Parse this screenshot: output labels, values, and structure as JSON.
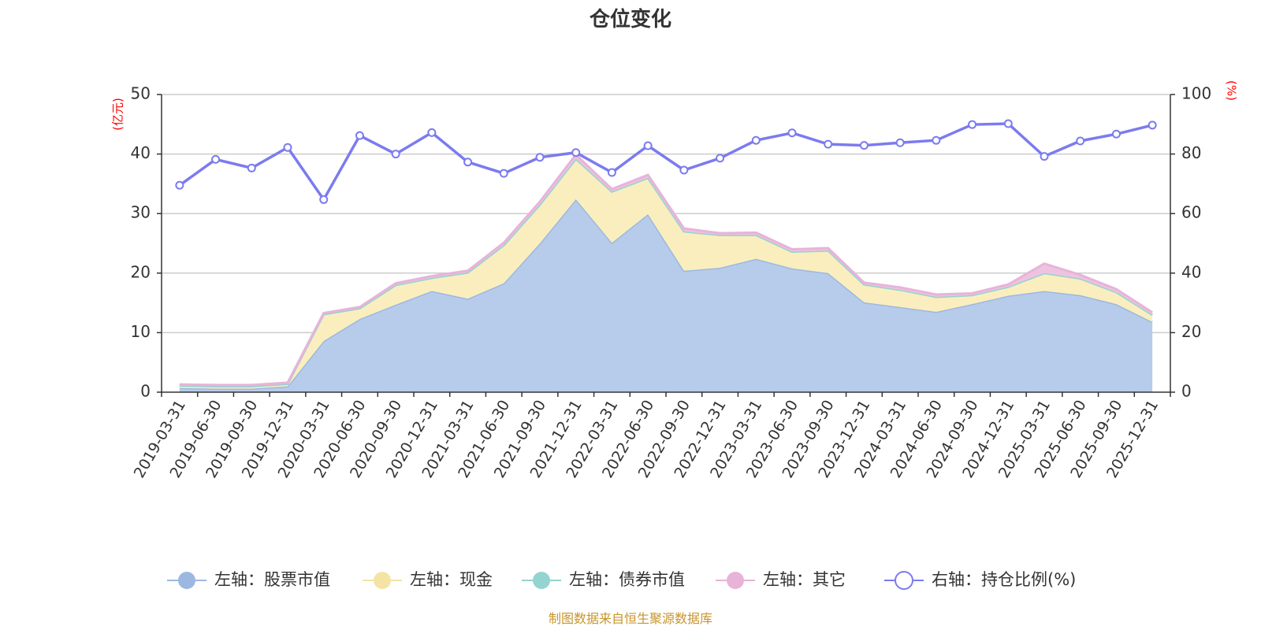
{
  "chart_data": {
    "type": "area+line",
    "title": "仓位变化",
    "left_unit": "(亿元)",
    "right_unit": "(%)",
    "left_ylim": [
      0,
      50
    ],
    "right_ylim": [
      0,
      100
    ],
    "left_ticks": [
      0,
      10,
      20,
      30,
      40,
      50
    ],
    "right_ticks": [
      0,
      20,
      40,
      60,
      80,
      100
    ],
    "categories": [
      "2019-03-31",
      "2019-06-30",
      "2019-09-30",
      "2019-12-31",
      "2020-03-31",
      "2020-06-30",
      "2020-09-30",
      "2020-12-31",
      "2021-03-31",
      "2021-06-30",
      "2021-09-30",
      "2021-12-31",
      "2022-03-31",
      "2022-06-30",
      "2022-09-30",
      "2022-12-31",
      "2023-03-31",
      "2023-06-30",
      "2023-09-30",
      "2023-12-31",
      "2024-03-31",
      "2024-06-30",
      "2024-09-30",
      "2024-12-31",
      "2025-03-31",
      "2025-06-30",
      "2025-09-30",
      "2025-12-31"
    ],
    "series": [
      {
        "name": "左轴：股票市值",
        "axis": "left",
        "color": "#9db8e0",
        "fill": "#b7cceb",
        "values": [
          0.7,
          0.6,
          0.6,
          1.0,
          8.6,
          12.3,
          14.7,
          17.0,
          15.7,
          18.3,
          25.0,
          32.4,
          25.1,
          29.9,
          20.4,
          20.9,
          22.4,
          20.8,
          20.0,
          15.1,
          14.3,
          13.5,
          14.8,
          16.2,
          17.0,
          16.3,
          14.8,
          11.8
        ]
      },
      {
        "name": "左轴：现金",
        "axis": "left",
        "color": "#f3e4a6",
        "fill": "#faeebf",
        "values": [
          0.4,
          0.4,
          0.4,
          0.4,
          4.5,
          1.8,
          3.3,
          2.2,
          4.4,
          6.4,
          6.5,
          6.8,
          8.6,
          6.1,
          6.6,
          5.5,
          4.0,
          2.8,
          3.8,
          3.0,
          2.9,
          2.5,
          1.5,
          1.5,
          3.0,
          2.8,
          2.0,
          1.2
        ]
      },
      {
        "name": "左轴：债券市值",
        "axis": "left",
        "color": "#93d4d0",
        "fill": "#a9ddd9",
        "values": [
          0,
          0,
          0,
          0,
          0,
          0,
          0,
          0,
          0,
          0,
          0,
          0,
          0,
          0,
          0,
          0,
          0,
          0,
          0,
          0,
          0,
          0,
          0,
          0,
          0,
          0,
          0,
          0
        ]
      },
      {
        "name": "左轴：其它",
        "axis": "left",
        "color": "#e8b3d9",
        "fill": "#eec3e0",
        "values": [
          0.2,
          0.2,
          0.2,
          0.2,
          0.2,
          0.2,
          0.3,
          0.3,
          0.3,
          0.4,
          0.5,
          0.7,
          0.4,
          0.5,
          0.5,
          0.3,
          0.4,
          0.4,
          0.4,
          0.3,
          0.4,
          0.4,
          0.3,
          0.4,
          1.6,
          0.6,
          0.5,
          0.4
        ]
      },
      {
        "name": "右轴：持仓比例(%)",
        "axis": "right",
        "color": "#7b7bef",
        "values": [
          69.5,
          78.2,
          75.3,
          82.2,
          64.7,
          86.2,
          80.0,
          87.2,
          77.3,
          73.5,
          78.9,
          80.5,
          73.8,
          82.8,
          74.6,
          78.6,
          84.6,
          87.1,
          83.3,
          82.9,
          83.8,
          84.6,
          89.9,
          90.2,
          79.2,
          84.4,
          86.7,
          89.7
        ]
      }
    ],
    "legend_position": "bottom",
    "source_note": "制图数据来自恒生聚源数据库"
  },
  "colors": {
    "axis": "#333333",
    "grid": "#cccccc",
    "unit": "#ff0000",
    "source": "#c8952a",
    "marker_fill": "#ffffff"
  }
}
